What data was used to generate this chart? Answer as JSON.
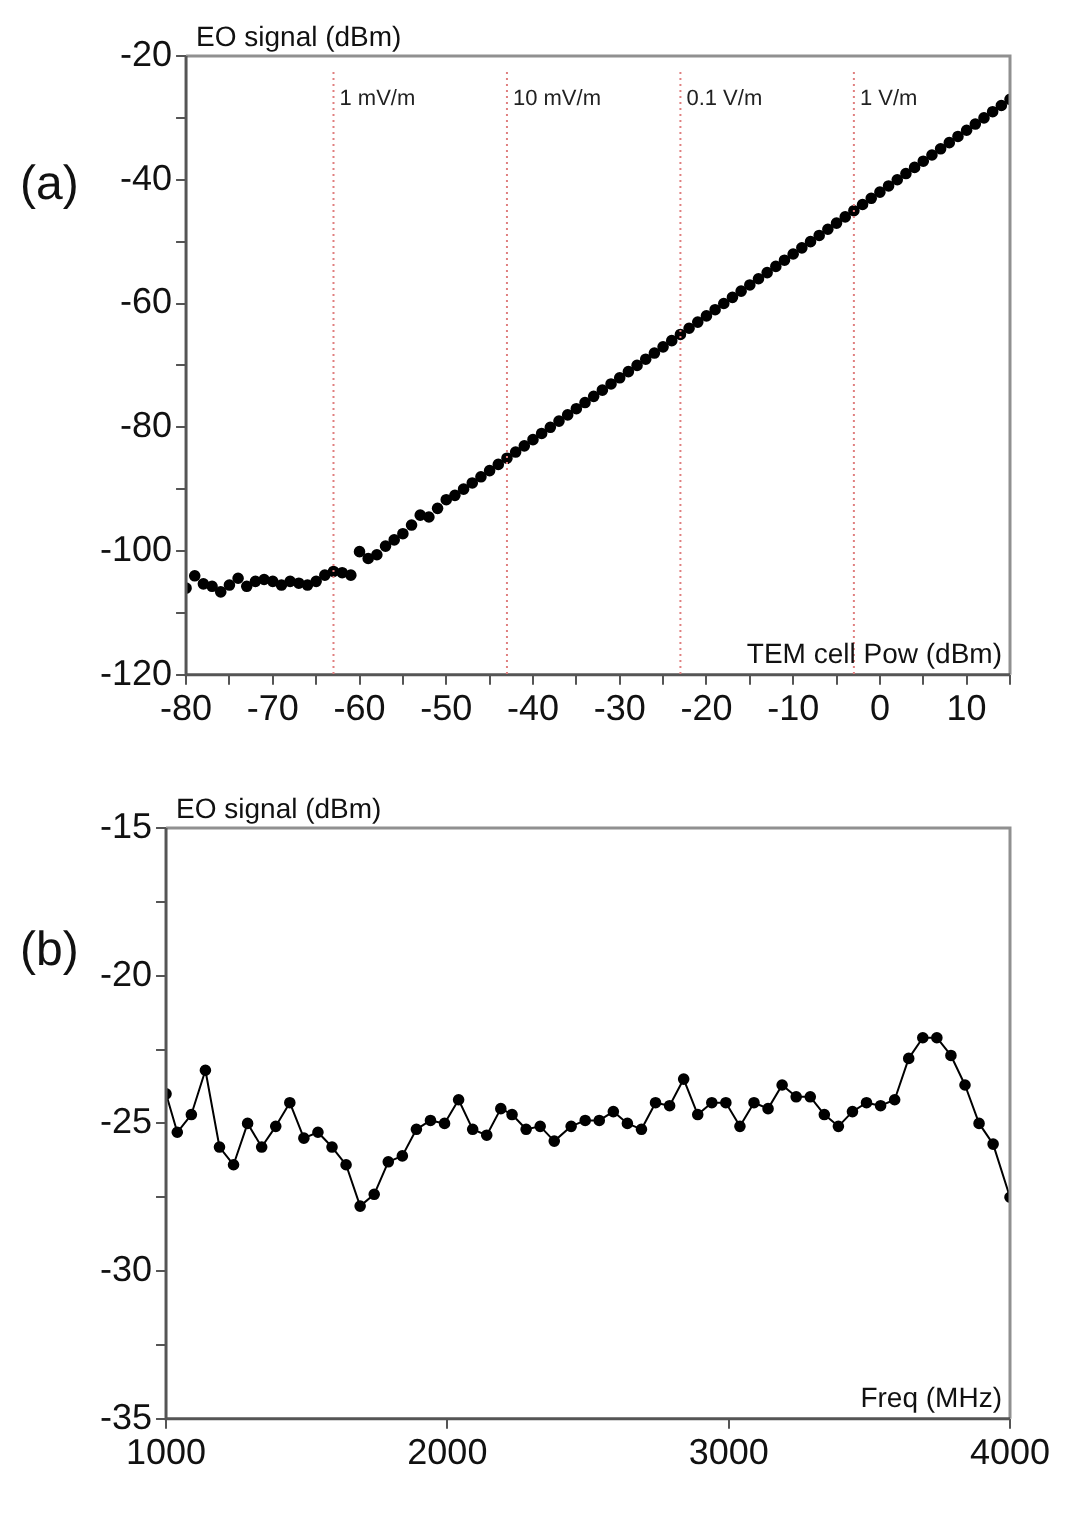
{
  "chart_data": [
    {
      "type": "scatter",
      "xlabel": "TEM cell Pow (dBm)",
      "ylabel": "EO signal (dBm)",
      "annotations": [
        "(a)"
      ],
      "marker": "circle",
      "color": "#000000",
      "x": [
        -80,
        -79,
        -78,
        -77,
        -76,
        -75,
        -74,
        -73,
        -72,
        -71,
        -70,
        -69,
        -68,
        -67,
        -66,
        -65,
        -64,
        -63,
        -62,
        -61,
        -60,
        -59,
        -58,
        -57,
        -56,
        -55,
        -54,
        -53,
        -52,
        -51,
        -50,
        -49,
        -48,
        -47,
        -46,
        -45,
        -44,
        -43,
        -42,
        -41,
        -40,
        -39,
        -38,
        -37,
        -36,
        -35,
        -34,
        -33,
        -32,
        -31,
        -30,
        -29,
        -28,
        -27,
        -26,
        -25,
        -24,
        -23,
        -22,
        -21,
        -20,
        -19,
        -18,
        -17,
        -16,
        -15,
        -14,
        -13,
        -12,
        -11,
        -10,
        -9,
        -8,
        -7,
        -6,
        -5,
        -4,
        -3,
        -2,
        -1,
        0,
        1,
        2,
        3,
        4,
        5,
        6,
        7,
        8,
        9,
        10,
        11,
        12,
        13,
        14,
        15
      ],
      "values": [
        -106.0,
        -104.0,
        -105.3,
        -105.7,
        -106.6,
        -105.5,
        -104.4,
        -105.7,
        -104.9,
        -104.6,
        -104.9,
        -105.5,
        -104.9,
        -105.2,
        -105.5,
        -104.9,
        -103.9,
        -103.3,
        -103.5,
        -103.9,
        -100.1,
        -101.2,
        -100.6,
        -99.2,
        -98.2,
        -97.2,
        -95.8,
        -94.2,
        -94.5,
        -93.1,
        -91.7,
        -91,
        -90,
        -89,
        -88,
        -87,
        -86,
        -85,
        -84,
        -83,
        -82,
        -81,
        -80,
        -79,
        -78,
        -77,
        -76,
        -75,
        -74,
        -73,
        -72,
        -71,
        -70,
        -69,
        -68,
        -67,
        -66,
        -65,
        -64,
        -63,
        -62,
        -61,
        -60,
        -59,
        -58,
        -57,
        -56,
        -55,
        -54,
        -53,
        -52,
        -51,
        -50,
        -49,
        -48,
        -47,
        -46,
        -45,
        -44,
        -43,
        -42,
        -41,
        -40,
        -39,
        -38,
        -37,
        -36,
        -35,
        -34,
        -33,
        -32,
        -31,
        -30,
        -29,
        -28,
        -27
      ],
      "xlim": [
        -80,
        15
      ],
      "xticks": [
        -80,
        {
          "value": -75,
          "label": null
        },
        -70,
        {
          "value": -65,
          "label": null
        },
        -60,
        {
          "value": -55,
          "label": null
        },
        -50,
        {
          "value": -45,
          "label": null
        },
        -40,
        {
          "value": -35,
          "label": null
        },
        -30,
        {
          "value": -25,
          "label": null
        },
        -20,
        {
          "value": -15,
          "label": null
        },
        -10,
        {
          "value": -5,
          "label": null
        },
        0,
        {
          "value": 5,
          "label": null
        },
        10,
        {
          "value": 15,
          "label": null
        }
      ],
      "ylim": [
        -120,
        -20
      ],
      "yticks": [
        -120,
        {
          "value": -110,
          "label": null
        },
        -100,
        {
          "value": -90,
          "label": null
        },
        -80,
        {
          "value": -70,
          "label": null
        },
        -60,
        {
          "value": -50,
          "label": null
        },
        -40,
        {
          "value": -30,
          "label": null
        },
        -20
      ],
      "ref_lines": [
        {
          "axis": "x",
          "value": -63,
          "label": "1 mV/m",
          "color": "#e08080",
          "line_style": "dotted"
        },
        {
          "axis": "x",
          "value": -43,
          "label": "10 mV/m",
          "color": "#e08080",
          "line_style": "dotted"
        },
        {
          "axis": "x",
          "value": -23,
          "label": "0.1 V/m",
          "color": "#e08080",
          "line_style": "dotted"
        },
        {
          "axis": "x",
          "value": -3,
          "label": "1 V/m",
          "color": "#e08080",
          "line_style": "dotted"
        }
      ]
    },
    {
      "type": "line",
      "xlabel": "Freq (MHz)",
      "ylabel": "EO signal (dBm)",
      "annotations": [
        "(b)"
      ],
      "marker": "circle",
      "color": "#000000",
      "x": [
        1000,
        1040,
        1090,
        1140,
        1190,
        1240,
        1290,
        1340,
        1390,
        1440,
        1490,
        1540,
        1590,
        1640,
        1690,
        1740,
        1790,
        1840,
        1890,
        1940,
        1990,
        2040,
        2090,
        2140,
        2190,
        2230,
        2280,
        2330,
        2380,
        2440,
        2490,
        2540,
        2590,
        2640,
        2690,
        2740,
        2790,
        2840,
        2890,
        2940,
        2990,
        3040,
        3090,
        3140,
        3190,
        3240,
        3290,
        3340,
        3390,
        3440,
        3490,
        3540,
        3590,
        3640,
        3690,
        3740,
        3790,
        3840,
        3890,
        3940,
        4000
      ],
      "values": [
        -24.0,
        -25.3,
        -24.7,
        -23.2,
        -25.8,
        -26.4,
        -25.0,
        -25.8,
        -25.1,
        -24.3,
        -25.5,
        -25.3,
        -25.8,
        -26.4,
        -27.8,
        -27.4,
        -26.3,
        -26.1,
        -25.2,
        -24.9,
        -25.0,
        -24.2,
        -25.2,
        -25.4,
        -24.5,
        -24.7,
        -25.2,
        -25.1,
        -25.6,
        -25.1,
        -24.9,
        -24.9,
        -24.6,
        -25.0,
        -25.2,
        -24.3,
        -24.4,
        -23.5,
        -24.7,
        -24.3,
        -24.3,
        -25.1,
        -24.3,
        -24.5,
        -23.7,
        -24.1,
        -24.1,
        -24.7,
        -25.1,
        -24.6,
        -24.3,
        -24.4,
        -24.2,
        -22.8,
        -22.1,
        -22.1,
        -22.7,
        -23.7,
        -25.0,
        -25.7,
        -27.5
      ],
      "xlim": [
        1000,
        4000
      ],
      "xticks": [
        1000,
        2000,
        3000,
        4000
      ],
      "ylim": [
        -35,
        -15
      ],
      "yticks": [
        -35,
        {
          "value": -32.5,
          "label": null
        },
        -30,
        {
          "value": -27.5,
          "label": null
        },
        -25,
        {
          "value": -22.5,
          "label": null
        },
        -20,
        {
          "value": -17.5,
          "label": null
        },
        -15
      ]
    }
  ]
}
